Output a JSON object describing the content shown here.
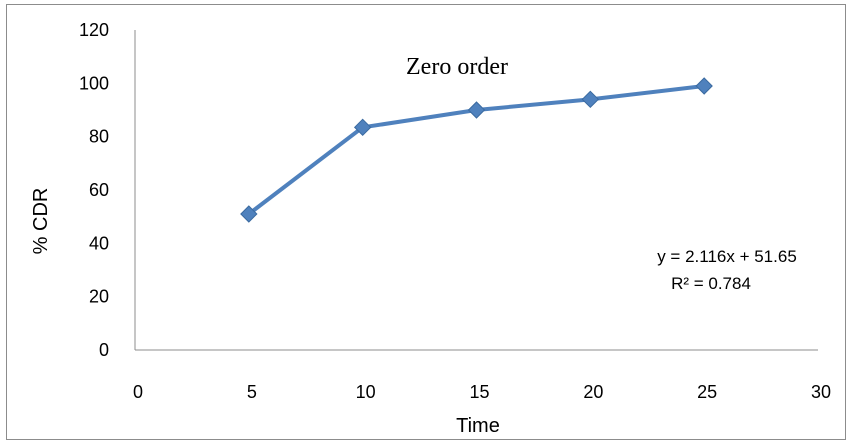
{
  "chart_data": {
    "type": "line",
    "title": "Zero order",
    "xlabel": "Time",
    "ylabel": "% CDR",
    "xlim": [
      0,
      30
    ],
    "ylim": [
      0,
      120
    ],
    "xticks": [
      0,
      5,
      10,
      15,
      20,
      25,
      30
    ],
    "yticks": [
      0,
      20,
      40,
      60,
      80,
      100,
      120
    ],
    "grid": false,
    "series": [
      {
        "x": [
          5,
          10,
          15,
          20,
          25
        ],
        "y": [
          51,
          83.5,
          90,
          94,
          99
        ],
        "color": "#4f81bd",
        "marker": "diamond"
      }
    ],
    "annotations": [
      "y = 2.116x + 51.65",
      "R² = 0.784"
    ]
  }
}
